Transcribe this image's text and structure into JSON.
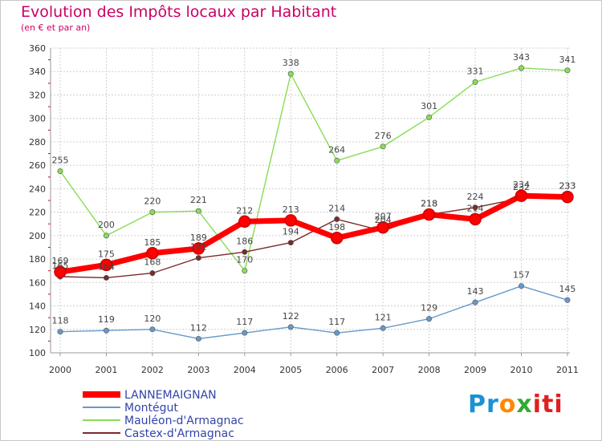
{
  "chart_data": {
    "type": "line",
    "title": "Evolution des Impôts locaux par Habitant",
    "subtitle": "(en € et par an)",
    "xlabel": "",
    "ylabel": "",
    "x": [
      "2000",
      "2001",
      "2002",
      "2003",
      "2004",
      "2005",
      "2006",
      "2007",
      "2008",
      "2009",
      "2010",
      "2011"
    ],
    "ylim": [
      100,
      360
    ],
    "yticks": [
      100,
      120,
      140,
      160,
      180,
      200,
      220,
      240,
      260,
      280,
      300,
      320,
      340,
      360
    ],
    "grid": true,
    "legend_position": "bottom-left",
    "series": [
      {
        "name": "Mauléon-d'Armagnac",
        "color": "#88dd55",
        "values": [
          255,
          200,
          220,
          221,
          170,
          338,
          264,
          276,
          301,
          331,
          343,
          341
        ]
      },
      {
        "name": "Castex-d'Armagnac",
        "color": "#7a2a2a",
        "values": [
          165,
          164,
          168,
          181,
          186,
          194,
          214,
          204,
          218,
          224,
          232,
          233
        ]
      },
      {
        "name": "Montégut",
        "color": "#6699cc",
        "values": [
          118,
          119,
          120,
          112,
          117,
          122,
          117,
          121,
          129,
          143,
          157,
          145
        ]
      },
      {
        "name": "LANNEMAIGNAN",
        "color": "#ff0000",
        "values": [
          169,
          175,
          185,
          189,
          212,
          213,
          198,
          207,
          218,
          214,
          234,
          233
        ]
      }
    ],
    "legend_order": [
      "LANNEMAIGNAN",
      "Montégut",
      "Mauléon-d'Armagnac",
      "Castex-d'Armagnac"
    ]
  },
  "logo": {
    "part1": "Pr",
    "part2": "o",
    "part3": "x",
    "part4": "iti"
  }
}
